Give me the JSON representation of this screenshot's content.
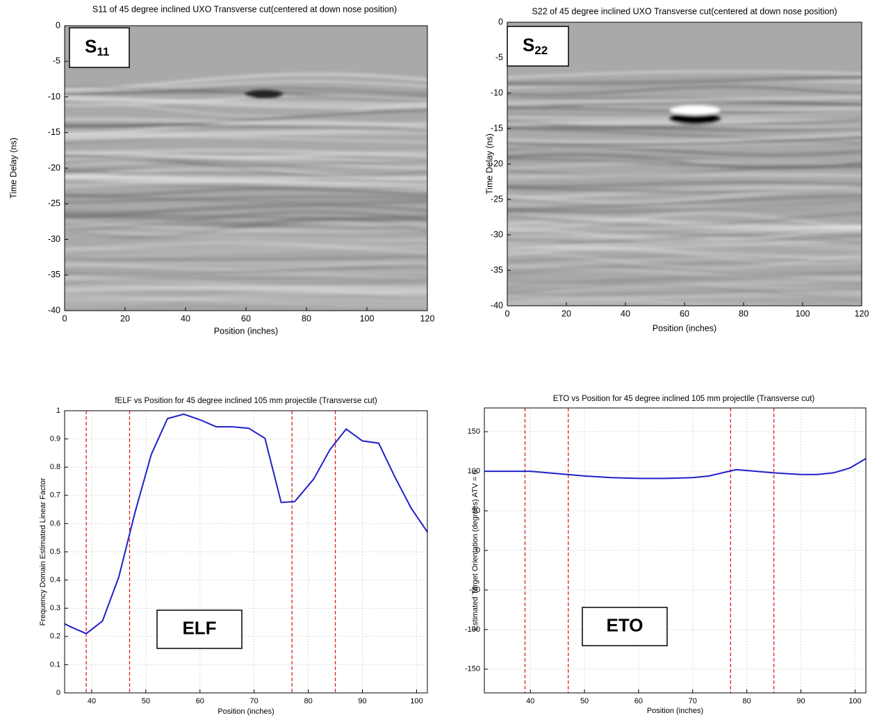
{
  "chart_data": [
    {
      "type": "image",
      "title": "S11 of 45 degree inclined UXO Transverse cut(centered at down nose position)",
      "xlabel": "Position (inches)",
      "ylabel": "Time Delay (ns)",
      "xlim": [
        0,
        120
      ],
      "ylim": [
        -40,
        0
      ],
      "xticks": [
        0,
        20,
        40,
        60,
        80,
        100,
        120
      ],
      "yticks": [
        0,
        -5,
        -10,
        -15,
        -20,
        -25,
        -30,
        -35,
        -40
      ],
      "grid": false,
      "annotation": {
        "text": "S",
        "subscript": "11"
      }
    },
    {
      "type": "image",
      "title": "S22 of 45 degree inclined UXO Transverse cut(centered at down nose position)",
      "xlabel": "Position (inches)",
      "ylabel": "Time Delay (ns)",
      "xlim": [
        0,
        120
      ],
      "ylim": [
        -40,
        0
      ],
      "xticks": [
        0,
        20,
        40,
        60,
        80,
        100,
        120
      ],
      "yticks": [
        0,
        -5,
        -10,
        -15,
        -20,
        -25,
        -30,
        -35,
        -40
      ],
      "grid": false,
      "annotation": {
        "text": "S",
        "subscript": "22"
      }
    },
    {
      "type": "line",
      "title": "fELF vs Position for 45 degree inclined 105 mm projectile (Transverse cut)",
      "xlabel": "Position (inches)",
      "ylabel": "Frequency Domain Estimated Linear Factor",
      "xlim": [
        35,
        102
      ],
      "ylim": [
        0,
        1
      ],
      "xticks": [
        40,
        50,
        60,
        70,
        80,
        90,
        100
      ],
      "yticks": [
        0,
        0.1,
        0.2,
        0.3,
        0.4,
        0.5,
        0.6,
        0.7,
        0.8,
        0.9,
        1
      ],
      "grid": true,
      "x": [
        35,
        36,
        39,
        42,
        45,
        48,
        51,
        54,
        57,
        60,
        63,
        66,
        69,
        72,
        75,
        77.5,
        81,
        84,
        87,
        90,
        93,
        96,
        99,
        102
      ],
      "values": [
        0.245,
        0.235,
        0.21,
        0.255,
        0.41,
        0.64,
        0.845,
        0.972,
        0.988,
        0.968,
        0.943,
        0.943,
        0.938,
        0.902,
        0.675,
        0.678,
        0.758,
        0.862,
        0.935,
        0.893,
        0.885,
        0.765,
        0.655,
        0.57
      ],
      "color": "#1f1fc8",
      "vlines": {
        "x": [
          39,
          47,
          77,
          85
        ],
        "color": "#e02020"
      },
      "annotation": {
        "text": "ELF"
      }
    },
    {
      "type": "line",
      "title": "ETO vs Position for 45 degree inclined 105 mm projectile (Transverse cut)",
      "xlabel": "Position (inches)",
      "ylabel": "Estimated Target Orientation (degrees) ATV = 0",
      "xlim": [
        31.5,
        102
      ],
      "ylim": [
        -180,
        180
      ],
      "xticks": [
        40,
        50,
        60,
        70,
        80,
        90,
        100
      ],
      "yticks": [
        -150,
        -100,
        -50,
        0,
        50,
        100,
        150
      ],
      "grid": true,
      "x": [
        31.5,
        35,
        40,
        45,
        50,
        55,
        60,
        65,
        70,
        73,
        78,
        80,
        85,
        90,
        93,
        96,
        99,
        102
      ],
      "values": [
        100,
        100,
        100,
        97,
        94,
        92,
        91,
        91,
        92,
        94,
        102,
        101,
        98,
        96,
        96,
        98,
        104,
        116
      ],
      "color": "#1f1fc8",
      "vlines": {
        "x": [
          39,
          47,
          77,
          85
        ],
        "color": "#e02020"
      },
      "annotation": {
        "text": "ETO"
      }
    }
  ]
}
